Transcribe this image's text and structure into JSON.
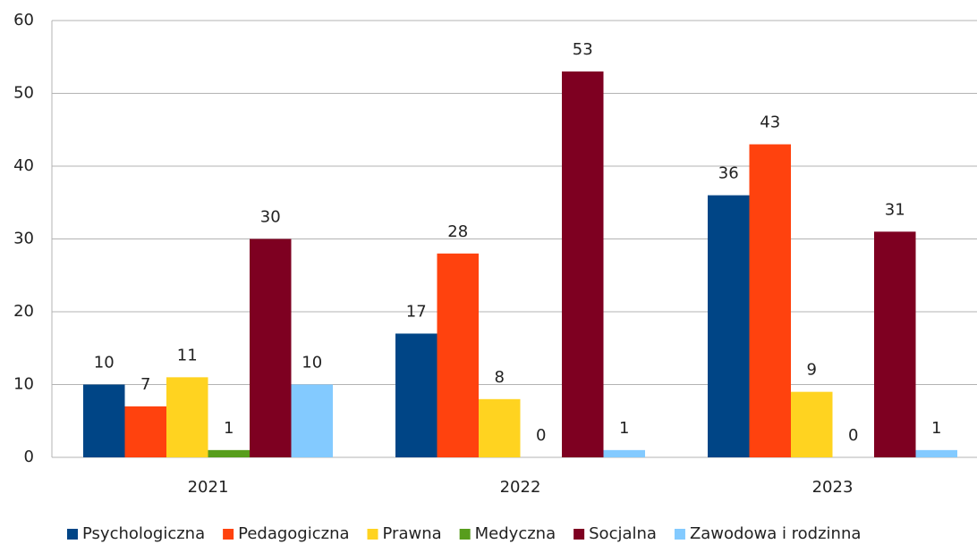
{
  "chart_data": {
    "type": "bar",
    "categories": [
      "2021",
      "2022",
      "2023"
    ],
    "series": [
      {
        "name": "Psychologiczna",
        "color": "#004586",
        "values": [
          10,
          17,
          36
        ]
      },
      {
        "name": "Pedagogiczna",
        "color": "#ff420e",
        "values": [
          7,
          28,
          43
        ]
      },
      {
        "name": "Prawna",
        "color": "#ffd320",
        "values": [
          11,
          8,
          9
        ]
      },
      {
        "name": "Medyczna",
        "color": "#579d1c",
        "values": [
          1,
          0,
          0
        ]
      },
      {
        "name": "Socjalna",
        "color": "#7e0021",
        "values": [
          30,
          53,
          31
        ]
      },
      {
        "name": "Zawodowa i rodzinna",
        "color": "#83caff",
        "values": [
          10,
          1,
          1
        ]
      }
    ],
    "ylim": [
      0,
      60
    ],
    "yticks": [
      0,
      10,
      20,
      30,
      40,
      50,
      60
    ],
    "grid": true,
    "legend": "bottom"
  }
}
